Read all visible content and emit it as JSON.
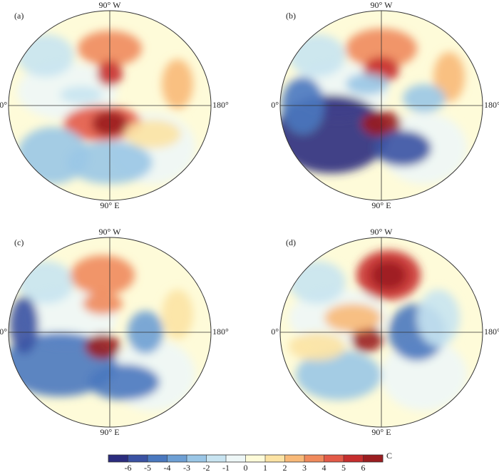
{
  "panels": [
    {
      "label": "(a)",
      "top": "90° W",
      "bottom": "90° E",
      "left": "0°",
      "right": "180°"
    },
    {
      "label": "(b)",
      "top": "90° W",
      "bottom": "90° E",
      "left": "0°",
      "right": "180°"
    },
    {
      "label": "(c)",
      "top": "90° W",
      "bottom": "90° E",
      "left": "0°",
      "right": "180°"
    },
    {
      "label": "(d)",
      "top": "90° W",
      "bottom": "90° E",
      "left": "0°",
      "right": "180°"
    }
  ],
  "colorbar": {
    "unit": "C",
    "lim": [
      -7,
      7
    ],
    "ticks": [
      -6,
      -5,
      -4,
      -3,
      -2,
      -1,
      0,
      1,
      2,
      3,
      4,
      5,
      6
    ],
    "colors": [
      "#2b2c7e",
      "#3a52a3",
      "#4a78bf",
      "#6d9fd4",
      "#9ac6e6",
      "#c8e4f1",
      "#eef7f7",
      "#fefbd9",
      "#fce3a4",
      "#f8b978",
      "#f08a5c",
      "#e35a48",
      "#c62e2e",
      "#9b1d20"
    ]
  }
}
